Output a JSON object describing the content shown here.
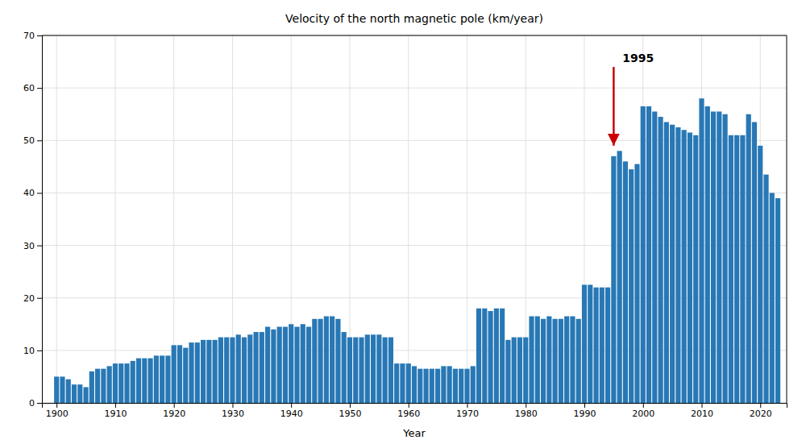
{
  "chart_data": {
    "type": "bar",
    "title": "Velocity of the north magnetic pole (km/year)",
    "xlabel": "Year",
    "color": "#2878b5",
    "x": [
      1900,
      1901,
      1902,
      1903,
      1904,
      1905,
      1906,
      1907,
      1908,
      1909,
      1910,
      1911,
      1912,
      1913,
      1914,
      1915,
      1916,
      1917,
      1918,
      1919,
      1920,
      1921,
      1922,
      1923,
      1924,
      1925,
      1926,
      1927,
      1928,
      1929,
      1930,
      1931,
      1932,
      1933,
      1934,
      1935,
      1936,
      1937,
      1938,
      1939,
      1940,
      1941,
      1942,
      1943,
      1944,
      1945,
      1946,
      1947,
      1948,
      1949,
      1950,
      1951,
      1952,
      1953,
      1954,
      1955,
      1956,
      1957,
      1958,
      1959,
      1960,
      1961,
      1962,
      1963,
      1964,
      1965,
      1966,
      1967,
      1968,
      1969,
      1970,
      1971,
      1972,
      1973,
      1974,
      1975,
      1976,
      1977,
      1978,
      1979,
      1980,
      1981,
      1982,
      1983,
      1984,
      1985,
      1986,
      1987,
      1988,
      1989,
      1990,
      1991,
      1992,
      1993,
      1994,
      1995,
      1996,
      1997,
      1998,
      1999,
      2000,
      2001,
      2002,
      2003,
      2004,
      2005,
      2006,
      2007,
      2008,
      2009,
      2010,
      2011,
      2012,
      2013,
      2014,
      2015,
      2016,
      2017,
      2018,
      2019,
      2020,
      2021,
      2022,
      2023
    ],
    "values": [
      5.0,
      5.0,
      4.5,
      3.5,
      3.5,
      3.0,
      6.0,
      6.5,
      6.5,
      7.0,
      7.5,
      7.5,
      7.5,
      8.0,
      8.5,
      8.5,
      8.5,
      9.0,
      9.0,
      9.0,
      11.0,
      11.0,
      10.5,
      11.5,
      11.5,
      12.0,
      12.0,
      12.0,
      12.5,
      12.5,
      12.5,
      13.0,
      12.5,
      13.0,
      13.5,
      13.5,
      14.5,
      14.0,
      14.5,
      14.5,
      15.0,
      14.5,
      15.0,
      14.5,
      16.0,
      16.0,
      16.5,
      16.5,
      16.0,
      13.5,
      12.5,
      12.5,
      12.5,
      13.0,
      13.0,
      13.0,
      12.5,
      12.5,
      7.5,
      7.5,
      7.5,
      7.0,
      6.5,
      6.5,
      6.5,
      6.5,
      7.0,
      7.0,
      6.5,
      6.5,
      6.5,
      7.0,
      18.0,
      18.0,
      17.5,
      18.0,
      18.0,
      12.0,
      12.5,
      12.5,
      12.5,
      16.5,
      16.5,
      16.0,
      16.5,
      16.0,
      16.0,
      16.5,
      16.5,
      16.0,
      22.5,
      22.5,
      22.0,
      22.0,
      22.0,
      47.0,
      48.0,
      46.0,
      44.5,
      45.5,
      56.5,
      56.5,
      55.5,
      54.5,
      53.5,
      53.0,
      52.5,
      52.0,
      51.5,
      51.0,
      58.0,
      56.5,
      55.5,
      55.5,
      55.0,
      51.0,
      51.0,
      51.0,
      55.0,
      53.5,
      49.0,
      43.5,
      40.0,
      39.0
    ],
    "xlim": [
      1897.5,
      2024.5
    ],
    "xticks": [
      1900,
      1910,
      1920,
      1930,
      1940,
      1950,
      1960,
      1970,
      1980,
      1990,
      2000,
      2010,
      2020
    ],
    "ylim": [
      0,
      70
    ],
    "yticks": [
      0,
      10,
      20,
      30,
      40,
      50,
      60,
      70
    ],
    "grid": true,
    "annotations": [
      {
        "text": "1995",
        "x": 1996.5,
        "y": 66.5,
        "arrow_x": 1995,
        "arrow_from": 64,
        "arrow_to": 49,
        "color": "#cc0000"
      }
    ]
  }
}
